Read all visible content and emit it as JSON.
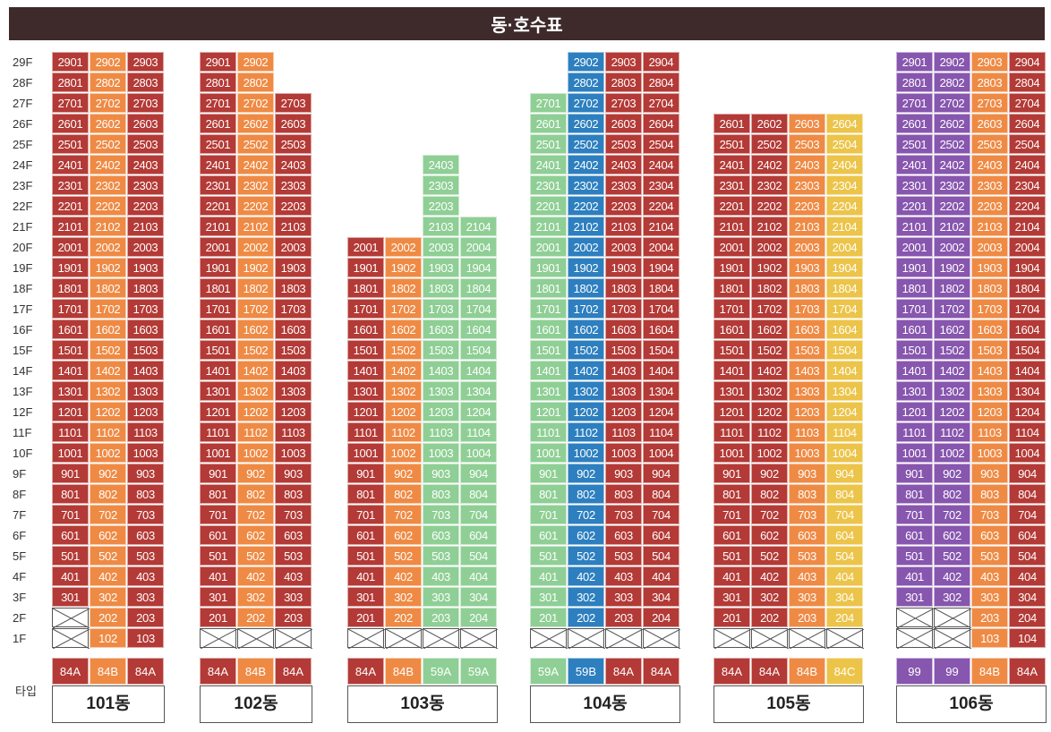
{
  "title": "동·호수표",
  "type_row_label": "타입",
  "colors": {
    "84A": "#b33a36",
    "84B": "#ef8a44",
    "59A": "#8fcf95",
    "59B": "#2d7fbf",
    "84C": "#ecc449",
    "99": "#8756ae",
    "header_bg": "#3e2a2b"
  },
  "floors": [
    "29F",
    "28F",
    "27F",
    "26F",
    "25F",
    "24F",
    "23F",
    "22F",
    "21F",
    "20F",
    "19F",
    "18F",
    "17F",
    "16F",
    "15F",
    "14F",
    "13F",
    "12F",
    "11F",
    "10F",
    "9F",
    "8F",
    "7F",
    "6F",
    "5F",
    "4F",
    "3F",
    "2F",
    "1F"
  ],
  "buildings": [
    {
      "name": "101동",
      "types": [
        "84A",
        "84B",
        "84A"
      ],
      "columns": [
        {
          "top": 29,
          "bottom": 3,
          "empty": [
            2,
            1
          ]
        },
        {
          "top": 29,
          "bottom": 1,
          "empty": []
        },
        {
          "top": 29,
          "bottom": 1,
          "empty": []
        }
      ]
    },
    {
      "name": "102동",
      "types": [
        "84A",
        "84B",
        "84A"
      ],
      "columns": [
        {
          "top": 29,
          "bottom": 2,
          "empty": [
            1
          ]
        },
        {
          "top": 29,
          "bottom": 2,
          "empty": [
            1
          ]
        },
        {
          "top": 27,
          "bottom": 2,
          "empty": [
            1
          ]
        }
      ]
    },
    {
      "name": "103동",
      "types": [
        "84A",
        "84B",
        "59A",
        "59A"
      ],
      "columns": [
        {
          "top": 20,
          "bottom": 2,
          "empty": [
            1
          ]
        },
        {
          "top": 20,
          "bottom": 2,
          "empty": [
            1
          ]
        },
        {
          "top": 24,
          "bottom": 2,
          "empty": [
            1
          ]
        },
        {
          "top": 21,
          "bottom": 2,
          "empty": [
            1
          ]
        }
      ]
    },
    {
      "name": "104동",
      "types": [
        "59A",
        "59B",
        "84A",
        "84A"
      ],
      "columns": [
        {
          "top": 27,
          "bottom": 2,
          "empty": [
            1
          ]
        },
        {
          "top": 29,
          "bottom": 2,
          "empty": [
            1
          ]
        },
        {
          "top": 29,
          "bottom": 2,
          "empty": [
            1
          ]
        },
        {
          "top": 29,
          "bottom": 2,
          "empty": [
            1
          ]
        }
      ]
    },
    {
      "name": "105동",
      "types": [
        "84A",
        "84A",
        "84B",
        "84C"
      ],
      "columns": [
        {
          "top": 26,
          "bottom": 2,
          "empty": [
            1
          ]
        },
        {
          "top": 26,
          "bottom": 2,
          "empty": [
            1
          ]
        },
        {
          "top": 26,
          "bottom": 2,
          "empty": [
            1
          ]
        },
        {
          "top": 26,
          "bottom": 2,
          "empty": [
            1
          ]
        }
      ]
    },
    {
      "name": "106동",
      "types": [
        "99",
        "99",
        "84B",
        "84A"
      ],
      "columns": [
        {
          "top": 29,
          "bottom": 3,
          "empty": [
            2,
            1
          ]
        },
        {
          "top": 29,
          "bottom": 3,
          "empty": [
            2,
            1
          ]
        },
        {
          "top": 29,
          "bottom": 1,
          "empty": []
        },
        {
          "top": 29,
          "bottom": 1,
          "empty": []
        }
      ]
    }
  ]
}
